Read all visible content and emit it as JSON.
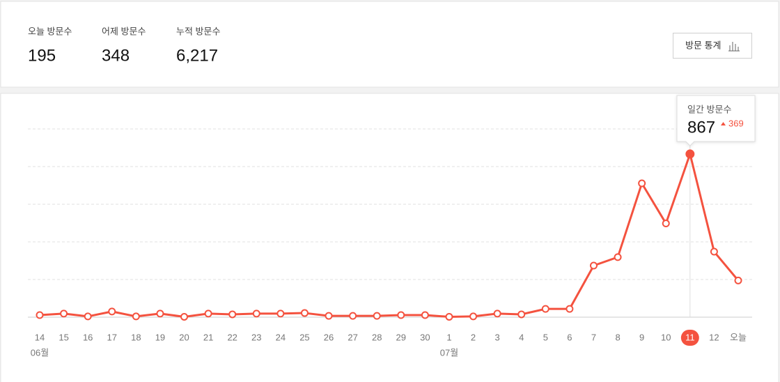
{
  "stats": [
    {
      "label": "오늘 방문수",
      "value": "195"
    },
    {
      "label": "어제 방문수",
      "value": "348"
    },
    {
      "label": "누적 방문수",
      "value": "6,217"
    }
  ],
  "button": "방문 통계",
  "chart_data": {
    "type": "line",
    "categories": [
      "14",
      "15",
      "16",
      "17",
      "18",
      "19",
      "20",
      "21",
      "22",
      "23",
      "24",
      "25",
      "26",
      "27",
      "28",
      "29",
      "30",
      "1",
      "2",
      "3",
      "4",
      "5",
      "6",
      "7",
      "8",
      "9",
      "10",
      "11",
      "12",
      "오늘"
    ],
    "month_labels": [
      "06월",
      null,
      null,
      null,
      null,
      null,
      null,
      null,
      null,
      null,
      null,
      null,
      null,
      null,
      null,
      null,
      null,
      "07월",
      null,
      null,
      null,
      null,
      null,
      null,
      null,
      null,
      null,
      null,
      null,
      null
    ],
    "values": [
      11,
      19,
      4,
      30,
      4,
      19,
      2,
      19,
      15,
      19,
      19,
      22,
      7,
      7,
      7,
      11,
      11,
      2,
      4,
      19,
      15,
      44,
      44,
      274,
      319,
      711,
      498,
      867,
      348,
      195
    ],
    "color": "#f4523f",
    "ylim": [
      0,
      1000
    ],
    "yticks": [
      0,
      200,
      400,
      600,
      800,
      1000
    ],
    "grid": true,
    "selected_category": "11",
    "tooltip": {
      "title": "일간 방문수",
      "change": 369
    }
  }
}
